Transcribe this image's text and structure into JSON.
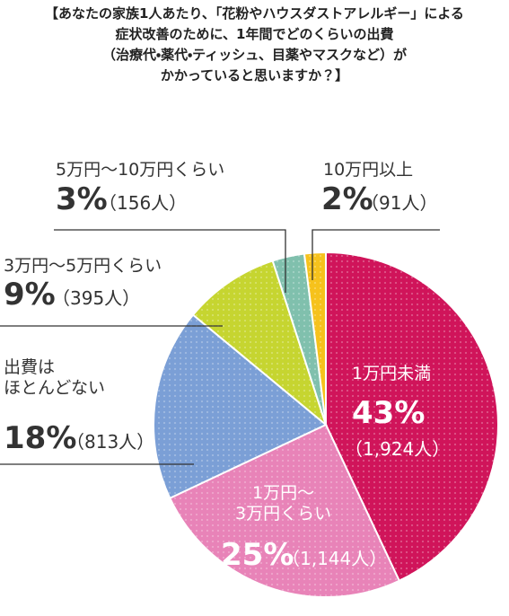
{
  "chart_data": {
    "type": "pie",
    "title": [
      "【あなたの家族1人あたり、「花粉やハウスダストアレルギー」による",
      "症状改善のために、1年間でどのくらいの出費",
      "（治療代・薬代・ティッシュ、目薬やマスクなど）が",
      "かかっていると思いますか？】"
    ],
    "categories": [
      "1万円未満",
      "1万円～\n3万円くらい",
      "出費は\nほとんどない",
      "3万円～5万円くらい",
      "5万円～10万円くらい",
      "10万円以上"
    ],
    "values": [
      43,
      25,
      18,
      9,
      3,
      2
    ],
    "value_labels": [
      "43%",
      "25%",
      "18%",
      "9%",
      "3%",
      "2%"
    ],
    "count_labels": [
      "（1,924人）",
      "（1,144人）",
      "（813人）",
      "（395人）",
      "（156人）",
      "（91人）"
    ],
    "colors": [
      "#d0145a",
      "#e883b8",
      "#7b9fd6",
      "#c6d530",
      "#80c0ad",
      "#f6c21c"
    ]
  }
}
